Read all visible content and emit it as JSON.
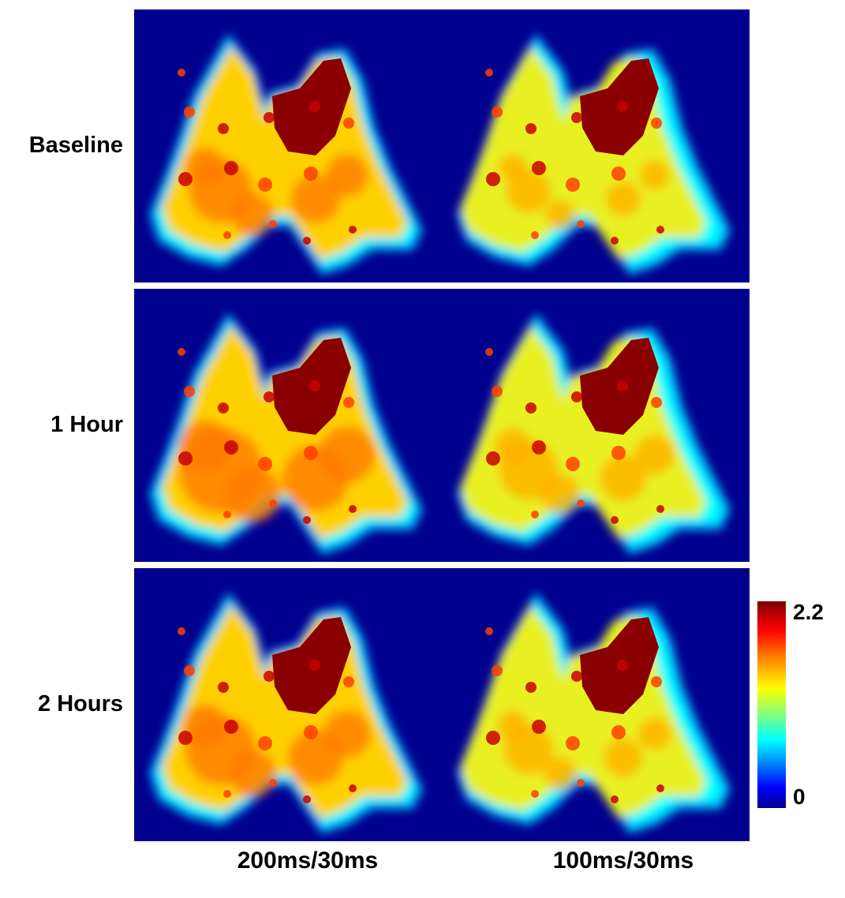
{
  "rows": [
    "Baseline",
    "1 Hour",
    "2 Hours"
  ],
  "columns": [
    "200ms/30ms",
    "100ms/30ms"
  ],
  "colorbar": {
    "max_label": "2.2",
    "min_label": "0"
  },
  "colors": {
    "background": "#00008f",
    "low": "#00ffff",
    "mid": "#ffff00",
    "high": "#7f0000"
  }
}
